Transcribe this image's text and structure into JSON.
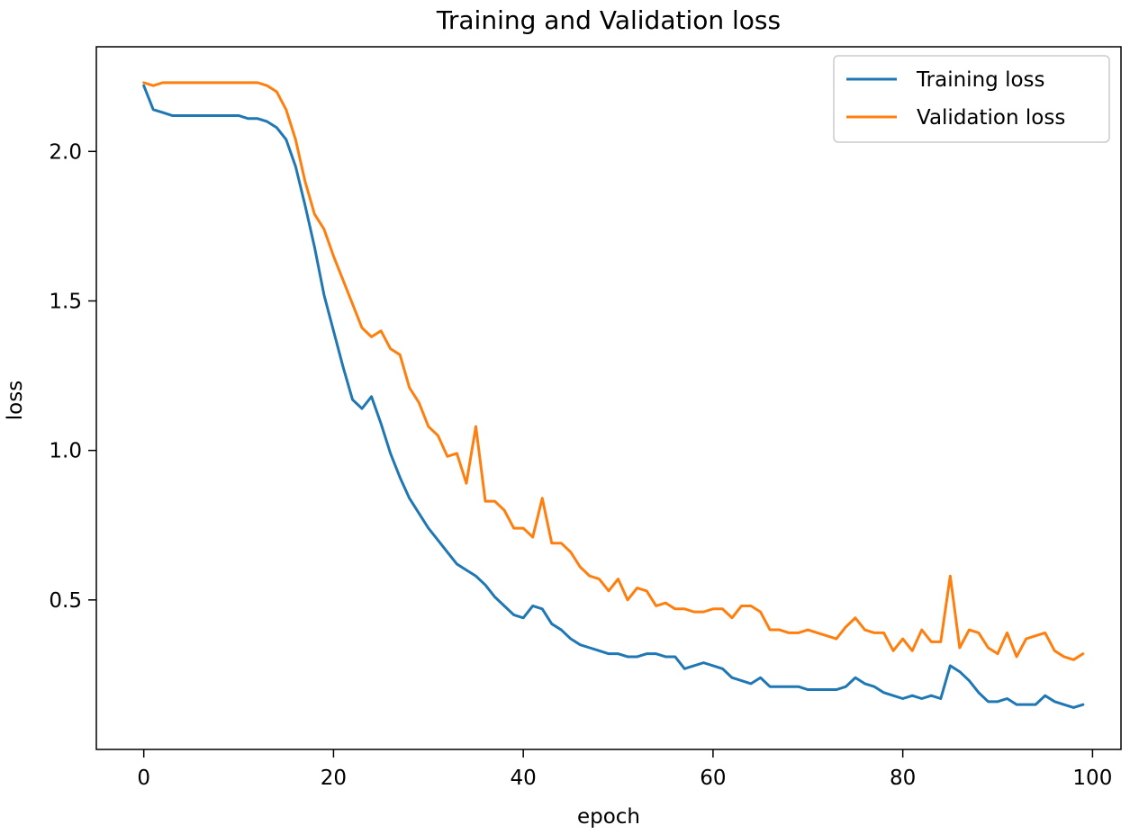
{
  "chart_data": {
    "type": "line",
    "title": "Training and Validation loss",
    "xlabel": "epoch",
    "ylabel": "loss",
    "xlim": [
      -5,
      103
    ],
    "ylim": [
      0.0,
      2.35
    ],
    "xticks": [
      0,
      20,
      40,
      60,
      80,
      100
    ],
    "xtick_labels": [
      "0",
      "20",
      "40",
      "60",
      "80",
      "100"
    ],
    "yticks": [
      0.5,
      1.0,
      1.5,
      2.0
    ],
    "ytick_labels": [
      "0.5",
      "1.0",
      "1.5",
      "2.0"
    ],
    "grid": false,
    "legend_position": "top-right",
    "series": [
      {
        "name": "Training loss",
        "color": "#1f77b4",
        "x": [
          0,
          1,
          2,
          3,
          4,
          5,
          6,
          7,
          8,
          9,
          10,
          11,
          12,
          13,
          14,
          15,
          16,
          17,
          18,
          19,
          20,
          21,
          22,
          23,
          24,
          25,
          26,
          27,
          28,
          29,
          30,
          31,
          32,
          33,
          34,
          35,
          36,
          37,
          38,
          39,
          40,
          41,
          42,
          43,
          44,
          45,
          46,
          47,
          48,
          49,
          50,
          51,
          52,
          53,
          54,
          55,
          56,
          57,
          58,
          59,
          60,
          61,
          62,
          63,
          64,
          65,
          66,
          67,
          68,
          69,
          70,
          71,
          72,
          73,
          74,
          75,
          76,
          77,
          78,
          79,
          80,
          81,
          82,
          83,
          84,
          85,
          86,
          87,
          88,
          89,
          90,
          91,
          92,
          93,
          94,
          95,
          96,
          97,
          98,
          99
        ],
        "values": [
          2.22,
          2.14,
          2.13,
          2.12,
          2.12,
          2.12,
          2.12,
          2.12,
          2.12,
          2.12,
          2.12,
          2.11,
          2.11,
          2.1,
          2.08,
          2.04,
          1.95,
          1.82,
          1.68,
          1.52,
          1.4,
          1.28,
          1.17,
          1.14,
          1.18,
          1.09,
          0.99,
          0.91,
          0.84,
          0.79,
          0.74,
          0.7,
          0.66,
          0.62,
          0.6,
          0.58,
          0.55,
          0.51,
          0.48,
          0.45,
          0.44,
          0.48,
          0.47,
          0.42,
          0.4,
          0.37,
          0.35,
          0.34,
          0.33,
          0.32,
          0.32,
          0.31,
          0.31,
          0.32,
          0.32,
          0.31,
          0.31,
          0.27,
          0.28,
          0.29,
          0.28,
          0.27,
          0.24,
          0.23,
          0.22,
          0.24,
          0.21,
          0.21,
          0.21,
          0.21,
          0.2,
          0.2,
          0.2,
          0.2,
          0.21,
          0.24,
          0.22,
          0.21,
          0.19,
          0.18,
          0.17,
          0.18,
          0.17,
          0.18,
          0.17,
          0.28,
          0.26,
          0.23,
          0.19,
          0.16,
          0.16,
          0.17,
          0.15,
          0.15,
          0.15,
          0.18,
          0.16,
          0.15,
          0.14,
          0.15
        ]
      },
      {
        "name": "Validation loss",
        "color": "#ff7f0e",
        "x": [
          0,
          1,
          2,
          3,
          4,
          5,
          6,
          7,
          8,
          9,
          10,
          11,
          12,
          13,
          14,
          15,
          16,
          17,
          18,
          19,
          20,
          21,
          22,
          23,
          24,
          25,
          26,
          27,
          28,
          29,
          30,
          31,
          32,
          33,
          34,
          35,
          36,
          37,
          38,
          39,
          40,
          41,
          42,
          43,
          44,
          45,
          46,
          47,
          48,
          49,
          50,
          51,
          52,
          53,
          54,
          55,
          56,
          57,
          58,
          59,
          60,
          61,
          62,
          63,
          64,
          65,
          66,
          67,
          68,
          69,
          70,
          71,
          72,
          73,
          74,
          75,
          76,
          77,
          78,
          79,
          80,
          81,
          82,
          83,
          84,
          85,
          86,
          87,
          88,
          89,
          90,
          91,
          92,
          93,
          94,
          95,
          96,
          97,
          98,
          99
        ],
        "values": [
          2.23,
          2.22,
          2.23,
          2.23,
          2.23,
          2.23,
          2.23,
          2.23,
          2.23,
          2.23,
          2.23,
          2.23,
          2.23,
          2.22,
          2.2,
          2.14,
          2.04,
          1.9,
          1.79,
          1.74,
          1.65,
          1.57,
          1.49,
          1.41,
          1.38,
          1.4,
          1.34,
          1.32,
          1.21,
          1.16,
          1.08,
          1.05,
          0.98,
          0.99,
          0.89,
          1.08,
          0.83,
          0.83,
          0.8,
          0.74,
          0.74,
          0.71,
          0.84,
          0.69,
          0.69,
          0.66,
          0.61,
          0.58,
          0.57,
          0.53,
          0.57,
          0.5,
          0.54,
          0.53,
          0.48,
          0.49,
          0.47,
          0.47,
          0.46,
          0.46,
          0.47,
          0.47,
          0.44,
          0.48,
          0.48,
          0.46,
          0.4,
          0.4,
          0.39,
          0.39,
          0.4,
          0.39,
          0.38,
          0.37,
          0.41,
          0.44,
          0.4,
          0.39,
          0.39,
          0.33,
          0.37,
          0.33,
          0.4,
          0.36,
          0.36,
          0.58,
          0.34,
          0.4,
          0.39,
          0.34,
          0.32,
          0.39,
          0.31,
          0.37,
          0.38,
          0.39,
          0.33,
          0.31,
          0.3,
          0.32
        ]
      }
    ]
  }
}
